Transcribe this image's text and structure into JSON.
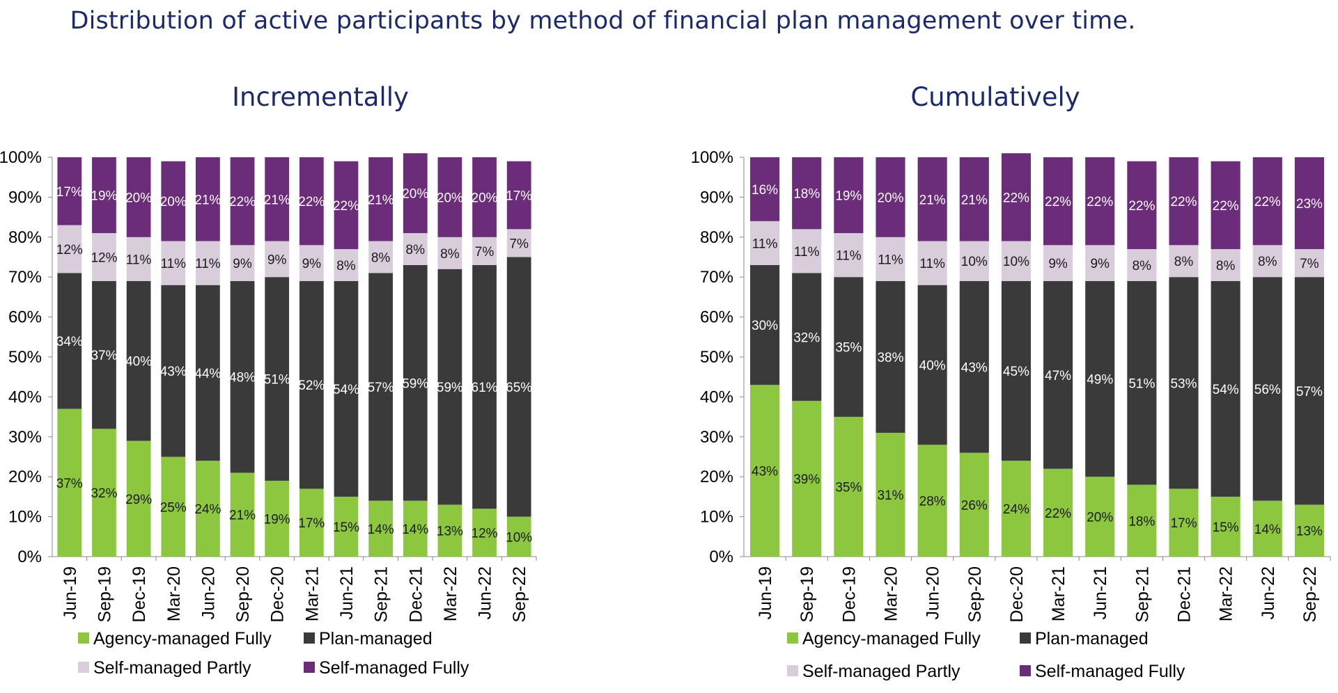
{
  "page_title": "Distribution of active participants by method of financial plan management over time.",
  "colors": {
    "agency_fully": "#8dc63f",
    "plan_managed": "#3a3a3a",
    "self_partly": "#d9ccdb",
    "self_fully": "#6b2c7a"
  },
  "legend": [
    "Agency-managed Fully",
    "Plan-managed",
    "Self-managed Partly",
    "Self-managed Fully"
  ],
  "chart_data": [
    {
      "type": "bar",
      "stacked": true,
      "title": "Incrementally",
      "categories": [
        "Jun-19",
        "Sep-19",
        "Dec-19",
        "Mar-20",
        "Jun-20",
        "Sep-20",
        "Dec-20",
        "Mar-21",
        "Jun-21",
        "Sep-21",
        "Dec-21",
        "Mar-22",
        "Jun-22",
        "Sep-22"
      ],
      "yticks": [
        "0%",
        "10%",
        "20%",
        "30%",
        "40%",
        "50%",
        "60%",
        "70%",
        "80%",
        "90%",
        "100%"
      ],
      "ylim": [
        0,
        100
      ],
      "series": [
        {
          "name": "Agency-managed Fully",
          "values": [
            37,
            32,
            29,
            25,
            24,
            21,
            19,
            17,
            15,
            14,
            14,
            13,
            12,
            10
          ]
        },
        {
          "name": "Plan-managed",
          "values": [
            34,
            37,
            40,
            43,
            44,
            48,
            51,
            52,
            54,
            57,
            59,
            59,
            61,
            65
          ]
        },
        {
          "name": "Self-managed Partly",
          "values": [
            12,
            12,
            11,
            11,
            11,
            9,
            9,
            9,
            8,
            8,
            8,
            8,
            7,
            7
          ]
        },
        {
          "name": "Self-managed Fully",
          "values": [
            17,
            19,
            20,
            20,
            21,
            22,
            21,
            22,
            22,
            21,
            20,
            20,
            20,
            17
          ]
        }
      ]
    },
    {
      "type": "bar",
      "stacked": true,
      "title": "Cumulatively",
      "categories": [
        "Jun-19",
        "Sep-19",
        "Dec-19",
        "Mar-20",
        "Jun-20",
        "Sep-20",
        "Dec-20",
        "Mar-21",
        "Jun-21",
        "Sep-21",
        "Dec-21",
        "Mar-22",
        "Jun-22",
        "Sep-22"
      ],
      "yticks": [
        "0%",
        "10%",
        "20%",
        "30%",
        "40%",
        "50%",
        "60%",
        "70%",
        "80%",
        "90%",
        "100%"
      ],
      "ylim": [
        0,
        100
      ],
      "series": [
        {
          "name": "Agency-managed Fully",
          "values": [
            43,
            39,
            35,
            31,
            28,
            26,
            24,
            22,
            20,
            18,
            17,
            15,
            14,
            13
          ]
        },
        {
          "name": "Plan-managed",
          "values": [
            30,
            32,
            35,
            38,
            40,
            43,
            45,
            47,
            49,
            51,
            53,
            54,
            56,
            57
          ]
        },
        {
          "name": "Self-managed Partly",
          "values": [
            11,
            11,
            11,
            11,
            11,
            10,
            10,
            9,
            9,
            8,
            8,
            8,
            8,
            7
          ]
        },
        {
          "name": "Self-managed Fully",
          "values": [
            16,
            18,
            19,
            20,
            21,
            21,
            22,
            22,
            22,
            22,
            22,
            22,
            22,
            23
          ]
        }
      ]
    }
  ]
}
